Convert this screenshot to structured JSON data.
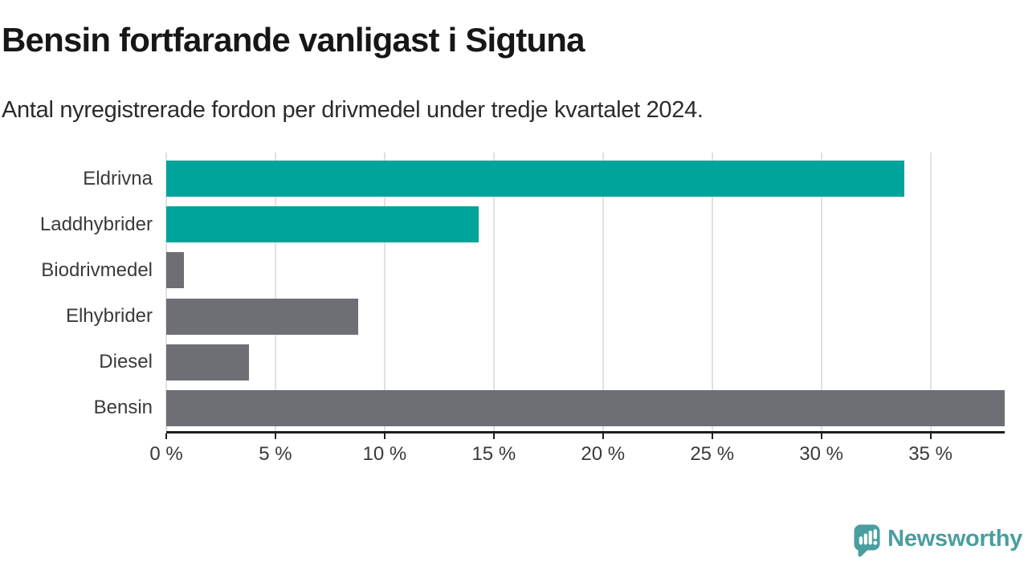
{
  "title": "Bensin fortfarande vanligast i Sigtuna",
  "subtitle": "Antal nyregistrerade fordon per drivmedel under tredje kvartalet 2024.",
  "chart_data": {
    "type": "bar",
    "orientation": "horizontal",
    "title": "Bensin fortfarande vanligast i Sigtuna",
    "subtitle": "Antal nyregistrerade fordon per drivmedel under tredje kvartalet 2024.",
    "categories": [
      "Eldrivna",
      "Laddhybrider",
      "Biodrivmedel",
      "Elhybrider",
      "Diesel",
      "Bensin"
    ],
    "values": [
      33.8,
      14.3,
      0.8,
      8.8,
      3.8,
      38.4
    ],
    "unit": "%",
    "xlim": [
      0,
      38.4
    ],
    "xticks": [
      0,
      5,
      10,
      15,
      20,
      25,
      30,
      35
    ],
    "xtick_labels": [
      "0 %",
      "5 %",
      "10 %",
      "15 %",
      "20 %",
      "25 %",
      "30 %",
      "35 %"
    ],
    "bar_colors": [
      "#00a49a",
      "#00a49a",
      "#6e6e75",
      "#6e6e75",
      "#6e6e75",
      "#6e6e75"
    ],
    "highlight_color": "#00a49a",
    "default_color": "#6e6e75",
    "grid": true,
    "gridline_color": "#e1e1e1",
    "axis_color": "#1f1f1f"
  },
  "footer": {
    "brand": "Newsworthy",
    "brand_color": "#4a9e9f",
    "logo_icon": "speech-bubble-bar-chart-icon"
  }
}
